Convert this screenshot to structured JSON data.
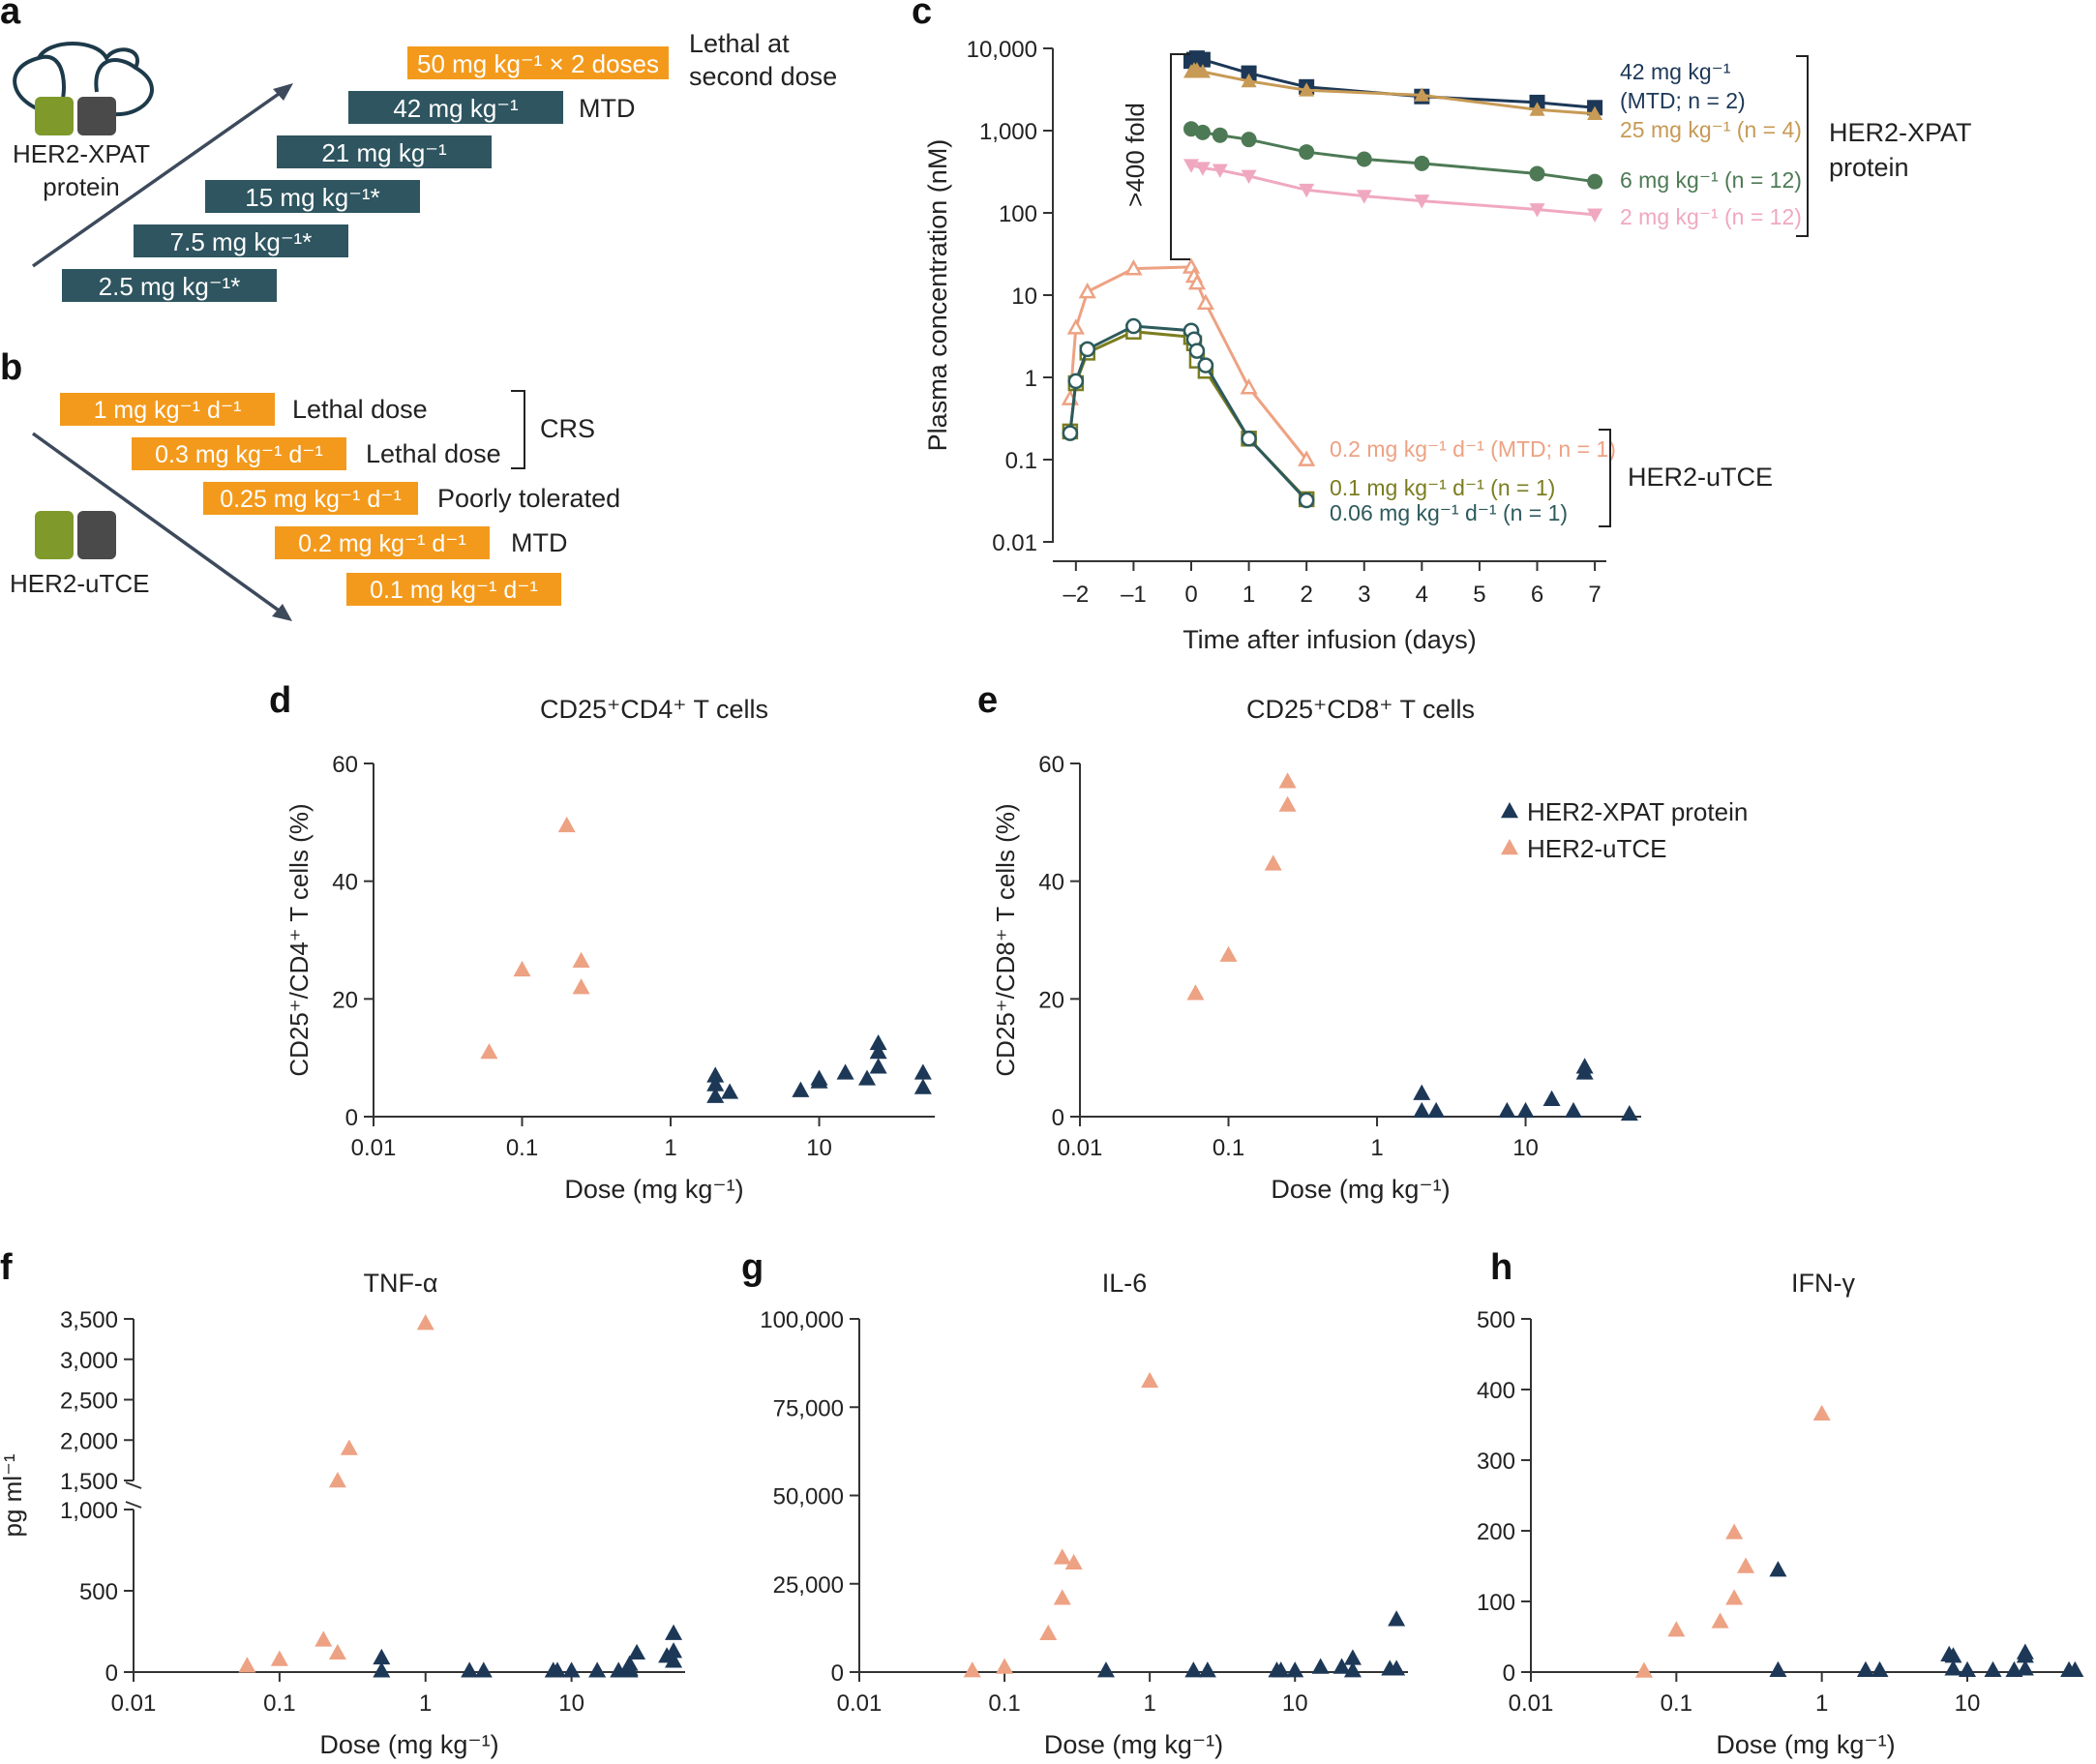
{
  "colors": {
    "teal": "#2e5560",
    "orange": "#f39a1c",
    "navy": "#1d3857",
    "peach": "#eda283",
    "axis": "#333333",
    "gold": "#c79a55",
    "green": "#4d7a55",
    "pink": "#f0a8c0",
    "olive": "#7b7d1f",
    "darkteal": "#2d5a5c",
    "lime": "#7f9a2b",
    "grey": "#4a4a4a"
  },
  "panel_labels": {
    "a": "a",
    "b": "b",
    "c": "c",
    "d": "d",
    "e": "e",
    "f": "f",
    "g": "g",
    "h": "h"
  },
  "panel_a": {
    "icon_label": "HER2-XPAT\nprotein",
    "bars": [
      {
        "label": "50 mg kg⁻¹ × 2 doses",
        "color": "orange",
        "note": "Lethal at\nsecond dose"
      },
      {
        "label": "42 mg kg⁻¹",
        "color": "teal",
        "note": "MTD"
      },
      {
        "label": "21 mg kg⁻¹",
        "color": "teal",
        "note": ""
      },
      {
        "label": "15 mg kg⁻¹*",
        "color": "teal",
        "note": ""
      },
      {
        "label": "7.5 mg kg⁻¹*",
        "color": "teal",
        "note": ""
      },
      {
        "label": "2.5 mg kg⁻¹*",
        "color": "teal",
        "note": ""
      }
    ]
  },
  "panel_b": {
    "icon_label": "HER2-uTCE",
    "bars": [
      {
        "label": "1 mg kg⁻¹ d⁻¹",
        "note": "Lethal dose"
      },
      {
        "label": "0.3 mg kg⁻¹ d⁻¹",
        "note": "Lethal dose"
      },
      {
        "label": "0.25 mg kg⁻¹ d⁻¹",
        "note": "Poorly tolerated"
      },
      {
        "label": "0.2 mg kg⁻¹ d⁻¹",
        "note": "MTD"
      },
      {
        "label": "0.1 mg kg⁻¹ d⁻¹",
        "note": ""
      }
    ],
    "bracket_label": "CRS"
  },
  "chart_data": [
    {
      "id": "c",
      "type": "line",
      "xlabel": "Time after infusion (days)",
      "ylabel": "Plasma concentration (nM)",
      "xticks": [
        -2,
        -1,
        0,
        1,
        2,
        3,
        4,
        5,
        6,
        7
      ],
      "xtick_labels": [
        "–2",
        "–1",
        "0",
        "1",
        "2",
        "3",
        "4",
        "5",
        "6",
        "7"
      ],
      "yscale": "log",
      "ylim": [
        0.01,
        10000
      ],
      "yticks": [
        0.01,
        0.1,
        1,
        10,
        100,
        1000,
        10000
      ],
      "ytick_labels": [
        "0.01",
        "0.1",
        "1",
        "10",
        "100",
        "1,000",
        "10,000"
      ],
      "series": [
        {
          "name": "42 mg kg⁻¹ (MTD; n = 2)",
          "label_lines": [
            "42 mg kg⁻¹",
            "(MTD; n = 2)"
          ],
          "color": "navy",
          "marker": "square",
          "x": [
            0.0,
            0.05,
            0.1,
            0.2,
            1,
            2,
            4,
            6,
            7
          ],
          "y": [
            7000,
            7300,
            7600,
            7300,
            5000,
            3400,
            2600,
            2200,
            1900
          ]
        },
        {
          "name": "25 mg kg⁻¹ (n = 4)",
          "label_lines": [
            "25 mg kg⁻¹ (n = 4)"
          ],
          "color": "gold",
          "marker": "triangle-up",
          "x": [
            0.0,
            0.05,
            0.1,
            0.2,
            1,
            2,
            4,
            6,
            7
          ],
          "y": [
            5200,
            5500,
            5500,
            5200,
            4000,
            3100,
            2700,
            1800,
            1600
          ]
        },
        {
          "name": "6 mg kg⁻¹ (n = 12)",
          "label_lines": [
            "6 mg kg⁻¹ (n = 12)"
          ],
          "color": "green",
          "marker": "circle",
          "x": [
            0.0,
            0.2,
            0.5,
            1,
            2,
            3,
            4,
            6,
            7
          ],
          "y": [
            1050,
            950,
            880,
            780,
            550,
            450,
            400,
            300,
            240
          ]
        },
        {
          "name": "2 mg kg⁻¹ (n = 12)",
          "label_lines": [
            "2 mg kg⁻¹ (n = 12)"
          ],
          "color": "pink",
          "marker": "triangle-down",
          "x": [
            0.0,
            0.2,
            0.5,
            1,
            2,
            3,
            4,
            6,
            7
          ],
          "y": [
            380,
            350,
            330,
            280,
            190,
            160,
            140,
            110,
            95
          ]
        },
        {
          "name": "0.2 mg kg⁻¹ d⁻¹ (MTD; n = 1)",
          "label_lines": [
            "0.2 mg kg⁻¹ d⁻¹ (MTD; n = 1)"
          ],
          "color": "peach",
          "marker": "triangle-open",
          "x": [
            -2.1,
            -2.0,
            -1.8,
            -1.0,
            0.0,
            0.05,
            0.1,
            0.25,
            1.0,
            2.0
          ],
          "y": [
            0.55,
            4.0,
            11.0,
            21.0,
            22.0,
            17.0,
            14.0,
            8.0,
            0.75,
            0.1
          ]
        },
        {
          "name": "0.1 mg kg⁻¹ d⁻¹ (n = 1)",
          "label_lines": [
            "0.1 mg kg⁻¹ d⁻¹ (n = 1)"
          ],
          "color": "olive",
          "marker": "square-open",
          "x": [
            -2.1,
            -2.0,
            -1.8,
            -1.0,
            0.0,
            0.05,
            0.1,
            0.25,
            1.0,
            2.0
          ],
          "y": [
            0.22,
            0.85,
            2.0,
            3.6,
            3.1,
            2.6,
            1.6,
            1.2,
            0.18,
            0.033
          ]
        },
        {
          "name": "0.06 mg kg⁻¹ d⁻¹ (n = 1)",
          "label_lines": [
            "0.06 mg kg⁻¹ d⁻¹ (n = 1)"
          ],
          "color": "darkteal",
          "marker": "circle-open",
          "x": [
            -2.1,
            -2.0,
            -1.8,
            -1.0,
            0.0,
            0.05,
            0.1,
            0.25,
            1.0,
            2.0
          ],
          "y": [
            0.21,
            0.9,
            2.2,
            4.2,
            3.7,
            2.9,
            2.1,
            1.4,
            0.18,
            0.032
          ]
        }
      ],
      "annotations": {
        "fold": ">400 fold",
        "group1": "HER2-XPAT\nprotein",
        "group2": "HER2-uTCE"
      }
    },
    {
      "id": "d",
      "type": "scatter",
      "title": "CD25⁺CD4⁺ T cells",
      "xlabel": "Dose (mg kg⁻¹)",
      "ylabel": "CD25⁺/CD4⁺ T cells (%)",
      "xscale": "log",
      "xlim": [
        0.01,
        60
      ],
      "xticks": [
        0.01,
        0.1,
        1,
        10
      ],
      "xtick_labels": [
        "0.01",
        "0.1",
        "1",
        "10"
      ],
      "ylim": [
        0,
        60
      ],
      "yticks": [
        0,
        20,
        40,
        60
      ],
      "ytick_labels": [
        "0",
        "20",
        "40",
        "60"
      ],
      "series": [
        {
          "name": "HER2-uTCE",
          "color": "peach",
          "x": [
            0.06,
            0.1,
            0.2,
            0.25,
            0.25
          ],
          "y": [
            11,
            25,
            49.5,
            26.5,
            22
          ]
        },
        {
          "name": "HER2-XPAT protein",
          "color": "navy",
          "x": [
            2,
            2,
            2,
            2.5,
            7.5,
            10,
            10,
            15,
            21,
            25,
            25,
            25,
            50,
            50
          ],
          "y": [
            7,
            5.5,
            3.5,
            4.2,
            4.5,
            6,
            6.5,
            7.5,
            6.5,
            12.5,
            11,
            8.5,
            7.5,
            5
          ]
        }
      ]
    },
    {
      "id": "e",
      "type": "scatter",
      "title": "CD25⁺CD8⁺ T cells",
      "xlabel": "Dose (mg kg⁻¹)",
      "ylabel": "CD25⁺/CD8⁺ T cells (%)",
      "xscale": "log",
      "xlim": [
        0.01,
        60
      ],
      "xticks": [
        0.01,
        0.1,
        1,
        10
      ],
      "xtick_labels": [
        "0.01",
        "0.1",
        "1",
        "10"
      ],
      "ylim": [
        0,
        60
      ],
      "yticks": [
        0,
        20,
        40,
        60
      ],
      "ytick_labels": [
        "0",
        "20",
        "40",
        "60"
      ],
      "legend": [
        "HER2-XPAT protein",
        "HER2-uTCE"
      ],
      "series": [
        {
          "name": "HER2-uTCE",
          "color": "peach",
          "x": [
            0.06,
            0.1,
            0.2,
            0.25,
            0.25
          ],
          "y": [
            21,
            27.5,
            43,
            57,
            53
          ]
        },
        {
          "name": "HER2-XPAT protein",
          "color": "navy",
          "x": [
            2,
            2,
            2.5,
            7.5,
            10,
            15,
            21,
            25,
            25,
            50
          ],
          "y": [
            4,
            1,
            1,
            1,
            1,
            3,
            1,
            8.5,
            7.5,
            0.5
          ]
        }
      ]
    },
    {
      "id": "f",
      "type": "scatter",
      "title": "TNF-α",
      "xlabel": "Dose (mg kg⁻¹)",
      "ylabel": "pg ml⁻¹",
      "xscale": "log",
      "xlim": [
        0.01,
        60
      ],
      "xticks": [
        0.01,
        0.1,
        1,
        10
      ],
      "xtick_labels": [
        "0.01",
        "0.1",
        "1",
        "10"
      ],
      "ylim": [
        0,
        3500
      ],
      "yticks": [
        0,
        500,
        1000,
        1500,
        2000,
        2500,
        3000,
        3500
      ],
      "ytick_labels": [
        "0",
        "500",
        "1,000",
        "1,500",
        "2,000",
        "2,500",
        "3,000",
        "3,500"
      ],
      "broken_axis": {
        "lower": [
          0,
          1000
        ],
        "upper": [
          1500,
          3500
        ]
      },
      "series": [
        {
          "name": "HER2-uTCE",
          "color": "peach",
          "x": [
            0.06,
            0.1,
            0.2,
            0.25,
            0.25,
            0.3,
            1
          ],
          "y": [
            40,
            80,
            200,
            120,
            1500,
            1900,
            3450
          ]
        },
        {
          "name": "HER2-XPAT protein",
          "color": "navy",
          "x": [
            0.5,
            0.5,
            2,
            2.5,
            7.5,
            8,
            10,
            15,
            21,
            25,
            25,
            25,
            28,
            45,
            50,
            50,
            50
          ],
          "y": [
            90,
            10,
            10,
            10,
            10,
            10,
            10,
            10,
            10,
            20,
            50,
            10,
            120,
            100,
            70,
            130,
            240
          ]
        }
      ]
    },
    {
      "id": "g",
      "type": "scatter",
      "title": "IL-6",
      "xlabel": "Dose (mg kg⁻¹)",
      "ylabel": "",
      "xscale": "log",
      "xlim": [
        0.01,
        60
      ],
      "xticks": [
        0.01,
        0.1,
        1,
        10
      ],
      "xtick_labels": [
        "0.01",
        "0.1",
        "1",
        "10"
      ],
      "ylim": [
        0,
        100000
      ],
      "yticks": [
        0,
        25000,
        50000,
        75000,
        100000
      ],
      "ytick_labels": [
        "0",
        "25,000",
        "50,000",
        "75,000",
        "100,000"
      ],
      "series": [
        {
          "name": "HER2-uTCE",
          "color": "peach",
          "x": [
            0.06,
            0.1,
            0.2,
            0.25,
            0.25,
            0.3,
            1
          ],
          "y": [
            500,
            1500,
            11000,
            21000,
            32500,
            31000,
            82500
          ]
        },
        {
          "name": "HER2-XPAT protein",
          "color": "navy",
          "x": [
            0.5,
            2,
            2.5,
            7.5,
            8,
            10,
            15,
            21,
            25,
            25,
            45,
            50,
            50
          ],
          "y": [
            500,
            500,
            500,
            500,
            500,
            500,
            1500,
            1500,
            500,
            4000,
            1000,
            15000,
            1000
          ]
        }
      ]
    },
    {
      "id": "h",
      "type": "scatter",
      "title": "IFN-γ",
      "xlabel": "Dose (mg kg⁻¹)",
      "ylabel": "",
      "xscale": "log",
      "xlim": [
        0.01,
        60
      ],
      "xticks": [
        0.01,
        0.1,
        1,
        10
      ],
      "xtick_labels": [
        "0.01",
        "0.1",
        "1",
        "10"
      ],
      "ylim": [
        0,
        500
      ],
      "yticks": [
        0,
        100,
        200,
        300,
        400,
        500
      ],
      "ytick_labels": [
        "0",
        "100",
        "200",
        "300",
        "400",
        "500"
      ],
      "series": [
        {
          "name": "HER2-uTCE",
          "color": "peach",
          "x": [
            0.06,
            0.1,
            0.2,
            0.25,
            0.25,
            0.3,
            1
          ],
          "y": [
            2,
            60,
            72,
            105,
            198,
            150,
            366
          ]
        },
        {
          "name": "HER2-XPAT protein",
          "color": "navy",
          "x": [
            0.5,
            0.5,
            2,
            2.5,
            7.5,
            8,
            8,
            10,
            15,
            21,
            25,
            25,
            25,
            50,
            55
          ],
          "y": [
            145,
            3,
            3,
            3,
            25,
            23,
            5,
            3,
            3,
            3,
            23,
            28,
            5,
            3,
            3
          ]
        }
      ]
    }
  ]
}
